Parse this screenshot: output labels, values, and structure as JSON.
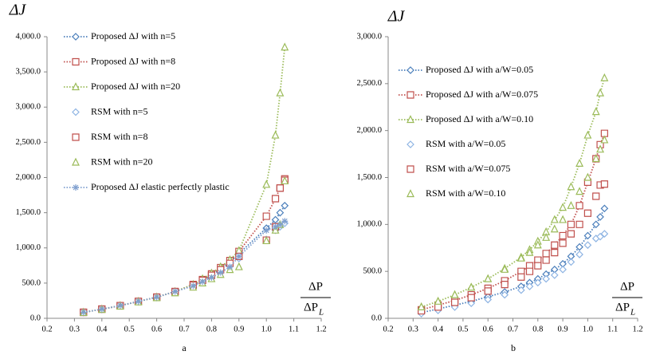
{
  "chart_data": [
    {
      "type": "line",
      "y_label": "ΔJ",
      "x_label": {
        "numerator": "ΔP",
        "denominator": "ΔP",
        "denominator_subscript": "L"
      },
      "caption": "a",
      "xlim": [
        0.2,
        1.2
      ],
      "xticks": [
        0.2,
        0.3,
        0.4,
        0.5,
        0.6,
        0.7,
        0.8,
        0.9,
        {
          "value": 1,
          "label": "1.0"
        },
        1.1,
        1.2
      ],
      "ylim": [
        0,
        4000
      ],
      "yticks": [
        {
          "value": 0,
          "label": "0.0"
        },
        {
          "value": 500,
          "label": "500.0"
        },
        {
          "value": 1000,
          "label": "1,000.0"
        },
        {
          "value": 1500,
          "label": "1,500.0"
        },
        {
          "value": 2000,
          "label": "2,000.0"
        },
        {
          "value": 2500,
          "label": "2,500.0"
        },
        {
          "value": 3000,
          "label": "3,000.0"
        },
        {
          "value": 3500,
          "label": "3,500.0"
        },
        {
          "value": 4000,
          "label": "4,000.0"
        }
      ],
      "legend": "upper left",
      "grid": false,
      "series": [
        {
          "name": "Proposed ΔJ with n=5",
          "color": "#4a7ebb",
          "marker": "diamond",
          "line": true,
          "x": [
            0.333,
            0.4,
            0.467,
            0.533,
            0.6,
            0.667,
            0.733,
            0.767,
            0.8,
            0.833,
            0.867,
            0.9,
            1.0,
            1.033,
            1.05,
            1.067
          ],
          "values": [
            85,
            130,
            180,
            240,
            300,
            380,
            470,
            540,
            610,
            690,
            790,
            920,
            1280,
            1400,
            1500,
            1600
          ]
        },
        {
          "name": "Proposed ΔJ with n=8",
          "color": "#c0504d",
          "marker": "square",
          "line": true,
          "x": [
            0.333,
            0.4,
            0.467,
            0.533,
            0.6,
            0.667,
            0.733,
            0.767,
            0.8,
            0.833,
            0.867,
            0.9,
            1.0,
            1.033,
            1.05,
            1.067
          ],
          "values": [
            85,
            130,
            180,
            240,
            300,
            380,
            480,
            550,
            630,
            720,
            820,
            950,
            1450,
            1700,
            1850,
            1980
          ]
        },
        {
          "name": "Proposed ΔJ with n=20",
          "color": "#9bbb59",
          "marker": "triangle",
          "line": true,
          "x": [
            0.333,
            0.4,
            0.467,
            0.533,
            0.6,
            0.667,
            0.733,
            0.767,
            0.8,
            0.833,
            0.867,
            0.9,
            1.0,
            1.033,
            1.05,
            1.067
          ],
          "values": [
            85,
            130,
            180,
            240,
            300,
            380,
            480,
            560,
            640,
            730,
            830,
            960,
            1900,
            2600,
            3200,
            3850
          ]
        },
        {
          "name": "RSM with n=5",
          "color": "#8eb4e3",
          "marker": "diamond",
          "line": false,
          "x": [
            0.333,
            0.4,
            0.467,
            0.533,
            0.6,
            0.667,
            0.733,
            0.767,
            0.8,
            0.833,
            0.867,
            0.9,
            1.0,
            1.033,
            1.05,
            1.067
          ],
          "values": [
            80,
            125,
            175,
            235,
            295,
            370,
            460,
            520,
            580,
            650,
            740,
            850,
            1120,
            1250,
            1300,
            1350
          ]
        },
        {
          "name": "RSM with n=8",
          "color": "#c0504d",
          "marker": "square",
          "line": false,
          "x": [
            0.333,
            0.4,
            0.467,
            0.533,
            0.6,
            0.667,
            0.733,
            0.767,
            0.8,
            0.833,
            0.867,
            0.9,
            1.0,
            1.033,
            1.05,
            1.067
          ],
          "values": [
            85,
            130,
            180,
            240,
            300,
            380,
            470,
            540,
            610,
            690,
            780,
            880,
            1110,
            1300,
            1850,
            1960
          ]
        },
        {
          "name": "RSM with n=20",
          "color": "#9bbb59",
          "marker": "triangle",
          "line": false,
          "x": [
            0.333,
            0.4,
            0.467,
            0.533,
            0.6,
            0.667,
            0.733,
            0.767,
            0.8,
            0.833,
            0.867,
            0.9,
            1.0,
            1.033,
            1.05,
            1.067
          ],
          "values": [
            80,
            125,
            170,
            230,
            290,
            360,
            440,
            500,
            560,
            620,
            690,
            730,
            1100,
            1250,
            1330,
            1950
          ]
        },
        {
          "name": "Proposed ΔJ elastic perfectly plastic",
          "color": "#7f9fcf",
          "marker": "asterisk",
          "line": true,
          "x": [
            0.333,
            0.4,
            0.467,
            0.533,
            0.6,
            0.667,
            0.733,
            0.767,
            0.8,
            0.833,
            0.867,
            0.9,
            1.0,
            1.033,
            1.05,
            1.067
          ],
          "values": [
            85,
            130,
            180,
            240,
            300,
            380,
            460,
            520,
            580,
            650,
            730,
            880,
            1250,
            1300,
            1330,
            1380
          ]
        }
      ]
    },
    {
      "type": "line",
      "y_label": "ΔJ",
      "x_label": {
        "numerator": "ΔP",
        "denominator": "ΔP",
        "denominator_subscript": "L"
      },
      "caption": "b",
      "xlim": [
        0.2,
        1.2
      ],
      "xticks": [
        0.2,
        0.3,
        0.4,
        0.5,
        0.6,
        0.7,
        0.8,
        0.9,
        {
          "value": 1,
          "label": "1.0"
        },
        1.1,
        1.2
      ],
      "ylim": [
        0,
        3000
      ],
      "yticks": [
        {
          "value": 0,
          "label": "0.0"
        },
        {
          "value": 500,
          "label": "500.0"
        },
        {
          "value": 1000,
          "label": "1,000.0"
        },
        {
          "value": 1500,
          "label": "1,500.0"
        },
        {
          "value": 2000,
          "label": "2,000.0"
        },
        {
          "value": 2500,
          "label": "2,500.0"
        },
        {
          "value": 3000,
          "label": "3,000.0"
        }
      ],
      "legend": "upper left",
      "grid": false,
      "series": [
        {
          "name": "Proposed ΔJ with a/W=0.05",
          "color": "#4a7ebb",
          "marker": "diamond",
          "line": true,
          "x": [
            0.333,
            0.4,
            0.467,
            0.533,
            0.6,
            0.667,
            0.733,
            0.767,
            0.8,
            0.833,
            0.867,
            0.9,
            0.933,
            0.967,
            1.0,
            1.033,
            1.05,
            1.067
          ],
          "values": [
            60,
            100,
            140,
            180,
            230,
            280,
            340,
            380,
            420,
            470,
            520,
            580,
            660,
            760,
            880,
            1000,
            1080,
            1170
          ]
        },
        {
          "name": "Proposed ΔJ with a/W=0.075",
          "color": "#c0504d",
          "marker": "square",
          "line": true,
          "x": [
            0.333,
            0.4,
            0.467,
            0.533,
            0.6,
            0.667,
            0.733,
            0.767,
            0.8,
            0.833,
            0.867,
            0.9,
            0.933,
            0.967,
            1.0,
            1.033,
            1.05,
            1.067
          ],
          "values": [
            90,
            140,
            190,
            250,
            320,
            400,
            500,
            560,
            620,
            690,
            780,
            880,
            1000,
            1200,
            1450,
            1700,
            1850,
            1970
          ]
        },
        {
          "name": "Proposed ΔJ with a/W=0.10",
          "color": "#9bbb59",
          "marker": "triangle",
          "line": true,
          "x": [
            0.333,
            0.4,
            0.467,
            0.533,
            0.6,
            0.667,
            0.733,
            0.767,
            0.8,
            0.833,
            0.867,
            0.9,
            0.933,
            0.967,
            1.0,
            1.033,
            1.05,
            1.067
          ],
          "values": [
            120,
            180,
            250,
            330,
            420,
            530,
            650,
            730,
            820,
            920,
            1050,
            1180,
            1400,
            1650,
            1950,
            2200,
            2400,
            2560
          ]
        },
        {
          "name": "RSM with a/W=0.05",
          "color": "#8eb4e3",
          "marker": "diamond",
          "line": false,
          "x": [
            0.333,
            0.4,
            0.467,
            0.533,
            0.6,
            0.667,
            0.733,
            0.767,
            0.8,
            0.833,
            0.867,
            0.9,
            0.933,
            0.967,
            1.0,
            1.033,
            1.05,
            1.067
          ],
          "values": [
            50,
            85,
            120,
            160,
            200,
            250,
            300,
            340,
            380,
            420,
            460,
            520,
            600,
            680,
            780,
            850,
            870,
            900
          ]
        },
        {
          "name": "RSM with a/W=0.075",
          "color": "#c0504d",
          "marker": "square",
          "line": false,
          "x": [
            0.333,
            0.4,
            0.467,
            0.533,
            0.6,
            0.667,
            0.733,
            0.767,
            0.8,
            0.833,
            0.867,
            0.9,
            0.933,
            0.967,
            1.0,
            1.033,
            1.05,
            1.067
          ],
          "values": [
            80,
            120,
            170,
            220,
            290,
            360,
            440,
            500,
            560,
            620,
            700,
            800,
            900,
            1000,
            1120,
            1300,
            1420,
            1430
          ]
        },
        {
          "name": "RSM with a/W=0.10",
          "color": "#9bbb59",
          "marker": "triangle",
          "line": false,
          "x": [
            0.333,
            0.4,
            0.467,
            0.533,
            0.6,
            0.667,
            0.733,
            0.767,
            0.8,
            0.833,
            0.867,
            0.9,
            0.933,
            0.967,
            1.0,
            1.033,
            1.05,
            1.067
          ],
          "values": [
            120,
            180,
            250,
            330,
            420,
            520,
            640,
            700,
            780,
            860,
            950,
            1050,
            1200,
            1350,
            1500,
            1700,
            1800,
            1900
          ]
        }
      ]
    }
  ]
}
